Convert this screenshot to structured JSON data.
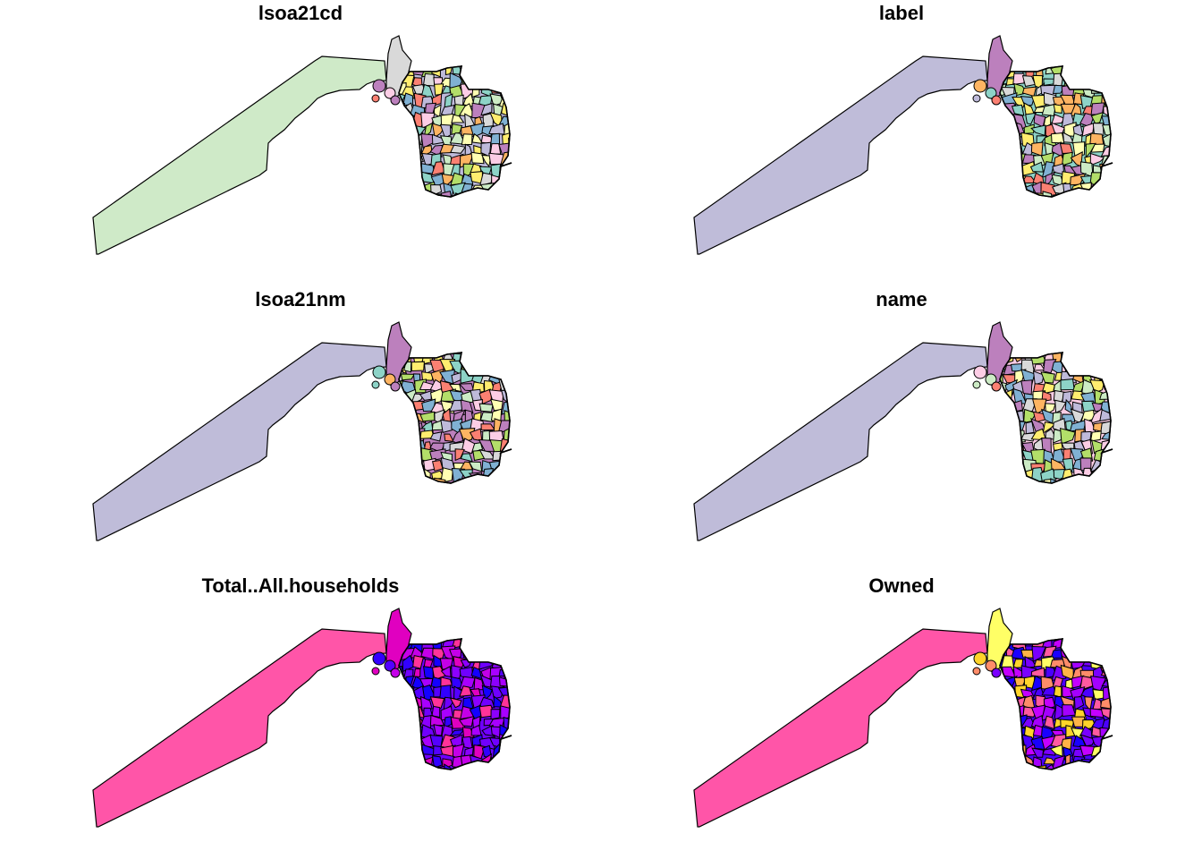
{
  "figure": {
    "panels": [
      {
        "title": "lsoa21cd",
        "strip_fill": "#cfeac8",
        "palette": "set3"
      },
      {
        "title": "label",
        "strip_fill": "#bfbcd9",
        "palette": "set3"
      },
      {
        "title": "lsoa21nm",
        "strip_fill": "#bfbcd9",
        "palette": "set3"
      },
      {
        "title": "name",
        "strip_fill": "#bfbcd9",
        "palette": "set3"
      },
      {
        "title": "Total..All.households",
        "strip_fill": "#ff55a8",
        "palette": "plasma"
      },
      {
        "title": "Owned",
        "strip_fill": "#ff55a8",
        "palette": "plasma-owned"
      }
    ],
    "palettes": {
      "set3": [
        "#8dd3c7",
        "#ffffb3",
        "#bebada",
        "#fb8072",
        "#80b1d3",
        "#fdb462",
        "#b3de69",
        "#fccde5",
        "#d9d9d9",
        "#bc80bd",
        "#ccebc5",
        "#ffed6f"
      ],
      "plasma": [
        "#1400ff",
        "#3200ff",
        "#5400ff",
        "#7000ff",
        "#8c00ff",
        "#a800ff",
        "#c400e8",
        "#e000c0",
        "#ff3399"
      ],
      "plasma-owned": [
        "#1a00ff",
        "#4b00ff",
        "#7a00ff",
        "#a400ff",
        "#c400ff",
        "#ff5aa0",
        "#ff8c69",
        "#ffb347",
        "#ffd42a",
        "#ffff66"
      ]
    },
    "outline_color": "#000000"
  }
}
